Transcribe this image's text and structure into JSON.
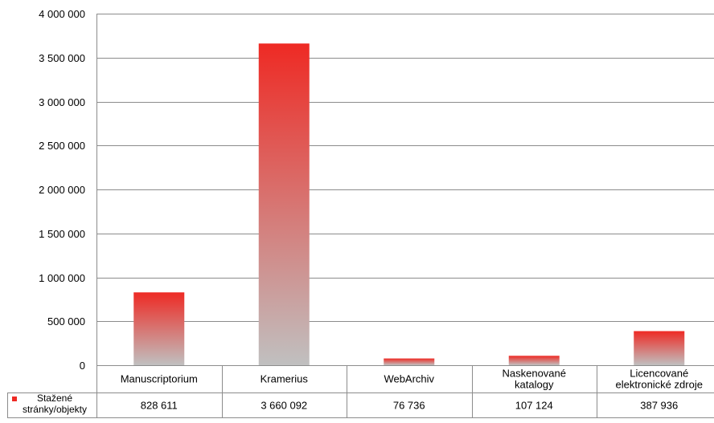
{
  "chart_data": {
    "type": "bar",
    "categories": [
      [
        "Manuscriptorium"
      ],
      [
        "Kramerius"
      ],
      [
        "WebArchiv"
      ],
      [
        "Naskenované",
        "katalogy"
      ],
      [
        "Licencované",
        "elektronické zdroje"
      ]
    ],
    "series": [
      {
        "name": [
          "Stažené",
          "stránky/objekty"
        ],
        "values": [
          828611,
          3660092,
          76736,
          107124,
          387936
        ],
        "value_labels": [
          "828 611",
          "3 660 092",
          "76 736",
          "107 124",
          "387 936"
        ],
        "color": "#ee2a24",
        "gradient_end_color": "#c0c0c0"
      }
    ],
    "ylim": [
      0,
      4000000
    ],
    "yticks": [
      0,
      500000,
      1000000,
      1500000,
      2000000,
      2500000,
      3000000,
      3500000,
      4000000
    ],
    "ytick_labels": [
      "0",
      "500 000",
      "1 000 000",
      "1 500 000",
      "2 000 000",
      "2 500 000",
      "3 000 000",
      "3 500 000",
      "4 000 000"
    ],
    "grid": true,
    "legend": "data-table-row",
    "data_table": true
  }
}
